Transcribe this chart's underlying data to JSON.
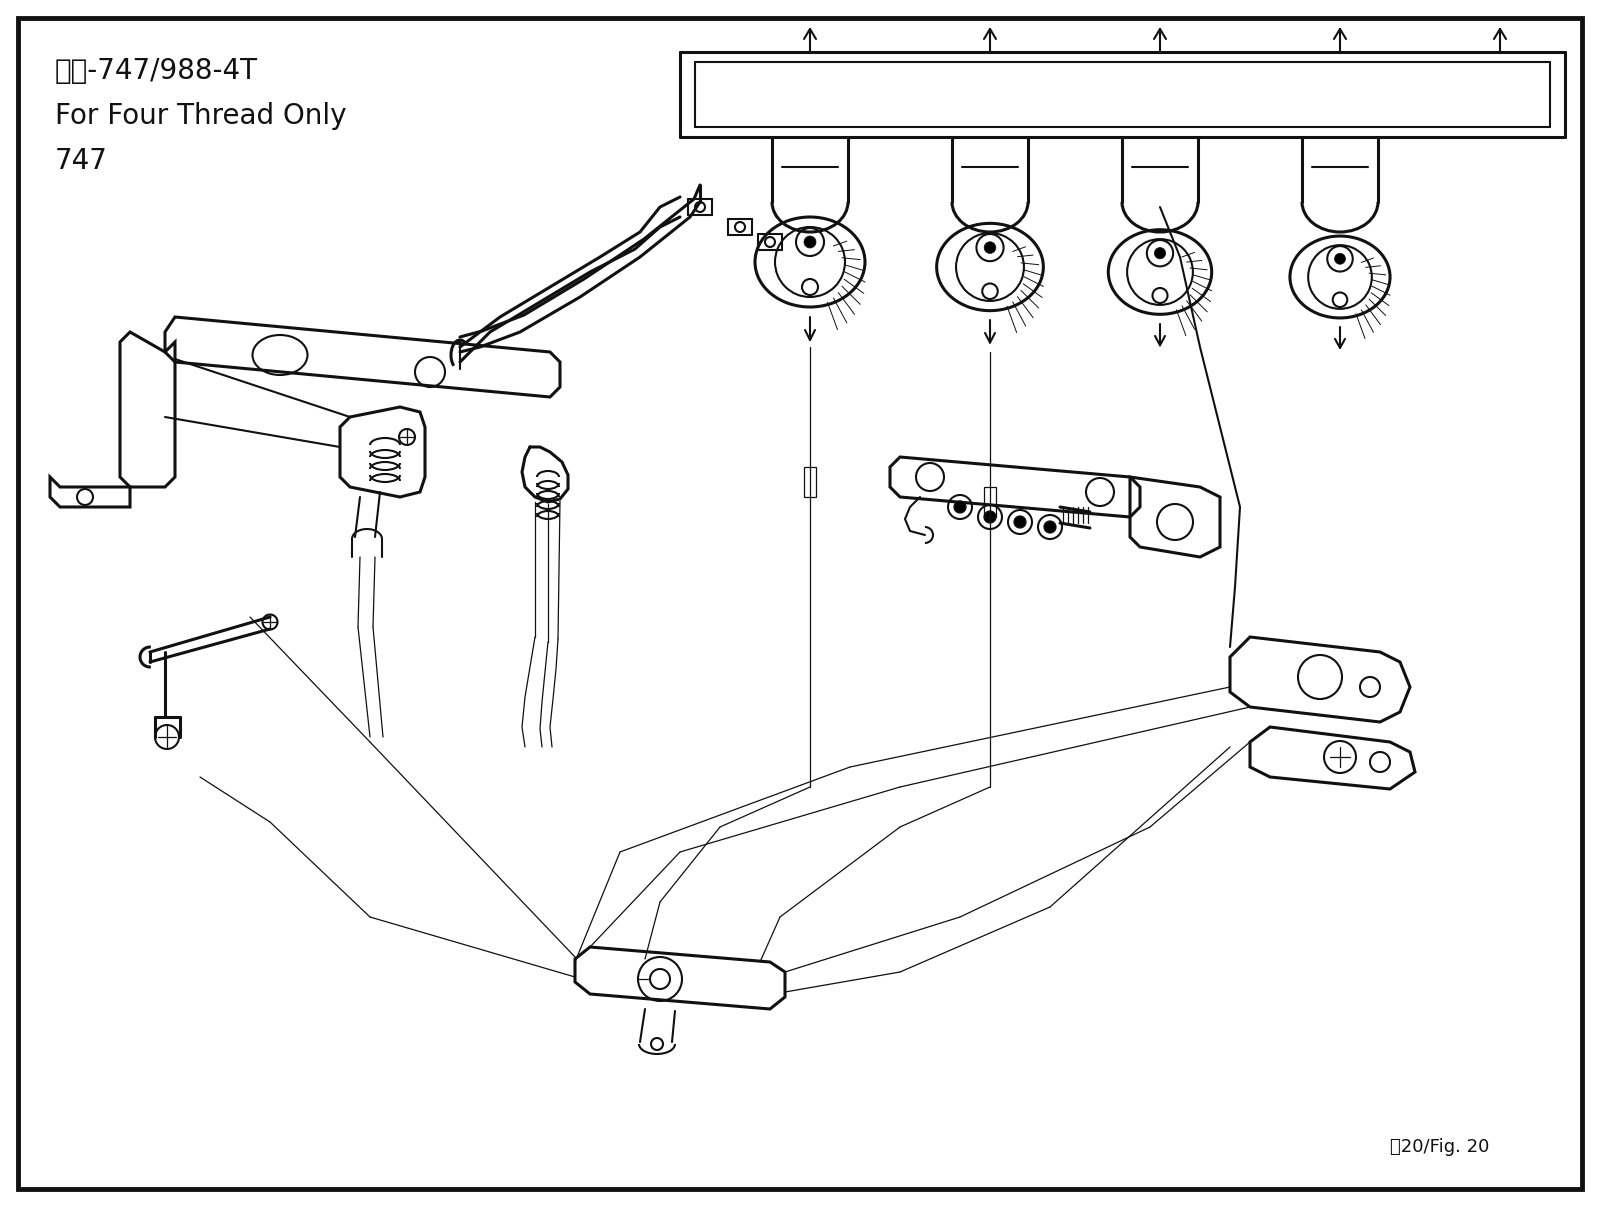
{
  "title_line1": "四線-747/988-4T",
  "title_line2": "For Four Thread Only",
  "title_line3": "747",
  "caption": "剢20/Fig. 20",
  "bg_color": "#ffffff",
  "border_color": "#111111",
  "line_color": "#111111",
  "title_fontsize": 20,
  "caption_fontsize": 13,
  "figsize": [
    16.0,
    12.07
  ],
  "dpi": 100,
  "lw_main": 1.5,
  "lw_thick": 2.2,
  "lw_thin": 0.9
}
